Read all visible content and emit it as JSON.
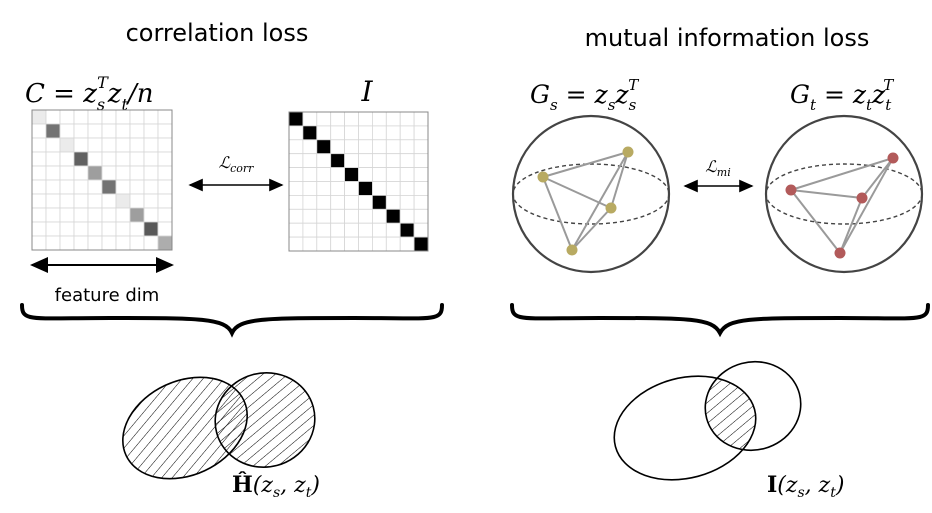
{
  "left": {
    "title": "correlation loss",
    "matrix_c_label_prefix": "C = z",
    "matrix_c_sub": "s",
    "matrix_c_sup": "T",
    "matrix_c_suffix": "z",
    "matrix_c_sub2": "t",
    "matrix_c_tail": "/n",
    "matrix_i_label": "I",
    "loss_label_main": "ℒ",
    "loss_label_sub": "corr",
    "feature_dim": "feature dim",
    "venn_label_main": "Ĥ",
    "venn_label_args": "(z",
    "venn_label_sub1": "s",
    "venn_label_mid": ", z",
    "venn_label_sub2": "t",
    "venn_label_end": ")",
    "c_diagonal_gray": [
      0.08,
      0.55,
      0.08,
      0.62,
      0.38,
      0.55,
      0.08,
      0.38,
      0.65,
      0.32
    ],
    "grid_size": 10
  },
  "right": {
    "title": "mutual information loss",
    "gs_label_main": "G",
    "gs_label_sub": "s",
    "gs_label_eq": " = z",
    "gs_label_sub2": "s",
    "gs_label_z": "z",
    "gs_label_sub3": "s",
    "gs_label_sup": "T",
    "gt_label_main": "G",
    "gt_label_sub": "t",
    "gt_label_eq": " = z",
    "gt_label_sub2": "t",
    "gt_label_z": "z",
    "gt_label_sub3": "t",
    "gt_label_sup": "T",
    "loss_label_main": "ℒ",
    "loss_label_sub": "mi",
    "venn_label_main": "I",
    "venn_label_args": "(z",
    "venn_label_sub1": "s",
    "venn_label_mid": ", z",
    "venn_label_sub2": "t",
    "venn_label_end": ")",
    "source_node_color": "#b8aa62",
    "target_node_color": "#b25a5a"
  }
}
